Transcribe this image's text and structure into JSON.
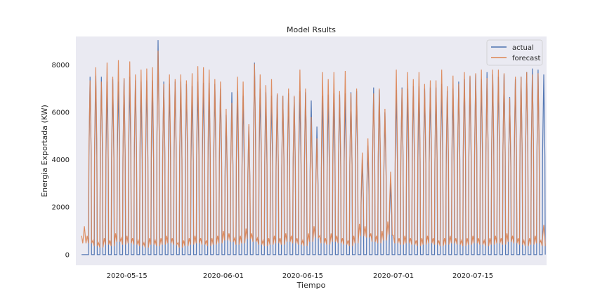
{
  "chart_data": {
    "type": "line",
    "title": "Model Rsults",
    "xlabel": "Tiempo",
    "ylabel": "Energia Exportada (KW)",
    "x_ticks": [
      "2020-05-15",
      "2020-06-01",
      "2020-06-15",
      "2020-07-01",
      "2020-07-15"
    ],
    "y_ticks": [
      "0",
      "2000",
      "4000",
      "6000",
      "8000"
    ],
    "x_range": [
      "2020-05-06",
      "2020-07-28"
    ],
    "ylim": [
      -450,
      9200
    ],
    "grid": false,
    "background": "#eaeaf2",
    "legend_position": "top-right",
    "series": [
      {
        "name": "actual",
        "color": "#4c72b0",
        "daily_peak_kw": [
          0,
          7500,
          7550,
          7500,
          7300,
          7400,
          7300,
          7400,
          7500,
          7350,
          7300,
          7350,
          7350,
          9050,
          7300,
          7200,
          7300,
          7300,
          7200,
          7100,
          7300,
          7250,
          7250,
          7200,
          7000,
          5900,
          6850,
          6900,
          6700,
          5400,
          8100,
          7000,
          6850,
          6700,
          6750,
          6700,
          6800,
          6650,
          6900,
          6850,
          6500,
          5400,
          6700,
          6750,
          6800,
          6750,
          6800,
          6850,
          6900,
          4000,
          4600,
          7050,
          6950,
          6000,
          3000,
          6950,
          7050,
          7000,
          7100,
          7100,
          7000,
          7050,
          7050,
          7200,
          6900,
          7000,
          7300,
          7400,
          7500,
          7600,
          7400,
          7700,
          7600,
          7500,
          7600,
          6650,
          7400,
          7500,
          7700,
          7850,
          7800,
          7600
        ],
        "daily_min_kw": [
          0,
          0,
          0,
          0,
          0,
          0,
          0,
          0,
          0,
          0,
          0,
          0,
          0,
          0,
          0,
          0,
          0,
          0,
          0,
          0,
          0,
          0,
          0,
          0,
          0,
          0,
          0,
          0,
          0,
          0,
          0,
          0,
          0,
          0,
          0,
          0,
          0,
          0,
          0,
          0,
          0,
          0,
          0,
          0,
          0,
          0,
          0,
          0,
          0,
          0,
          0,
          0,
          0,
          0,
          0,
          0,
          0,
          0,
          0,
          0,
          0,
          0,
          0,
          0,
          0,
          0,
          0,
          0,
          0,
          0,
          0,
          0,
          0,
          0,
          0,
          0,
          0,
          0,
          0,
          0,
          0,
          0
        ]
      },
      {
        "name": "forecast",
        "color": "#dd8452",
        "daily_peak_kw": [
          1200,
          7350,
          7900,
          7300,
          8100,
          7500,
          8200,
          7450,
          8150,
          7600,
          7800,
          7850,
          7900,
          8600,
          7200,
          7600,
          7400,
          7600,
          7350,
          7650,
          7950,
          7900,
          7800,
          7400,
          7300,
          6150,
          6400,
          7500,
          7300,
          5500,
          8050,
          7600,
          7150,
          7400,
          6800,
          6700,
          7000,
          6700,
          7800,
          7000,
          5800,
          4900,
          7700,
          7400,
          7700,
          6900,
          7750,
          6800,
          7000,
          4300,
          4900,
          6800,
          7000,
          6150,
          3500,
          7800,
          7000,
          7700,
          7400,
          7700,
          7200,
          7350,
          7350,
          7800,
          7100,
          7550,
          7200,
          7700,
          7550,
          7650,
          7800,
          7450,
          7800,
          7800,
          7650,
          6600,
          7500,
          7500,
          7700,
          7600,
          7650,
          1250
        ],
        "daily_min_kw": [
          800,
          800,
          600,
          500,
          700,
          600,
          900,
          700,
          800,
          700,
          600,
          500,
          700,
          600,
          700,
          800,
          700,
          500,
          600,
          700,
          800,
          700,
          600,
          700,
          800,
          1000,
          900,
          700,
          800,
          1100,
          900,
          700,
          600,
          700,
          800,
          700,
          900,
          800,
          700,
          600,
          900,
          1200,
          800,
          700,
          900,
          800,
          700,
          600,
          800,
          1300,
          1200,
          900,
          800,
          1000,
          1400,
          800,
          700,
          800,
          700,
          600,
          700,
          800,
          700,
          600,
          700,
          800,
          700,
          600,
          700,
          800,
          700,
          600,
          700,
          800,
          700,
          900,
          800,
          700,
          600,
          700,
          800,
          600
        ]
      }
    ]
  }
}
